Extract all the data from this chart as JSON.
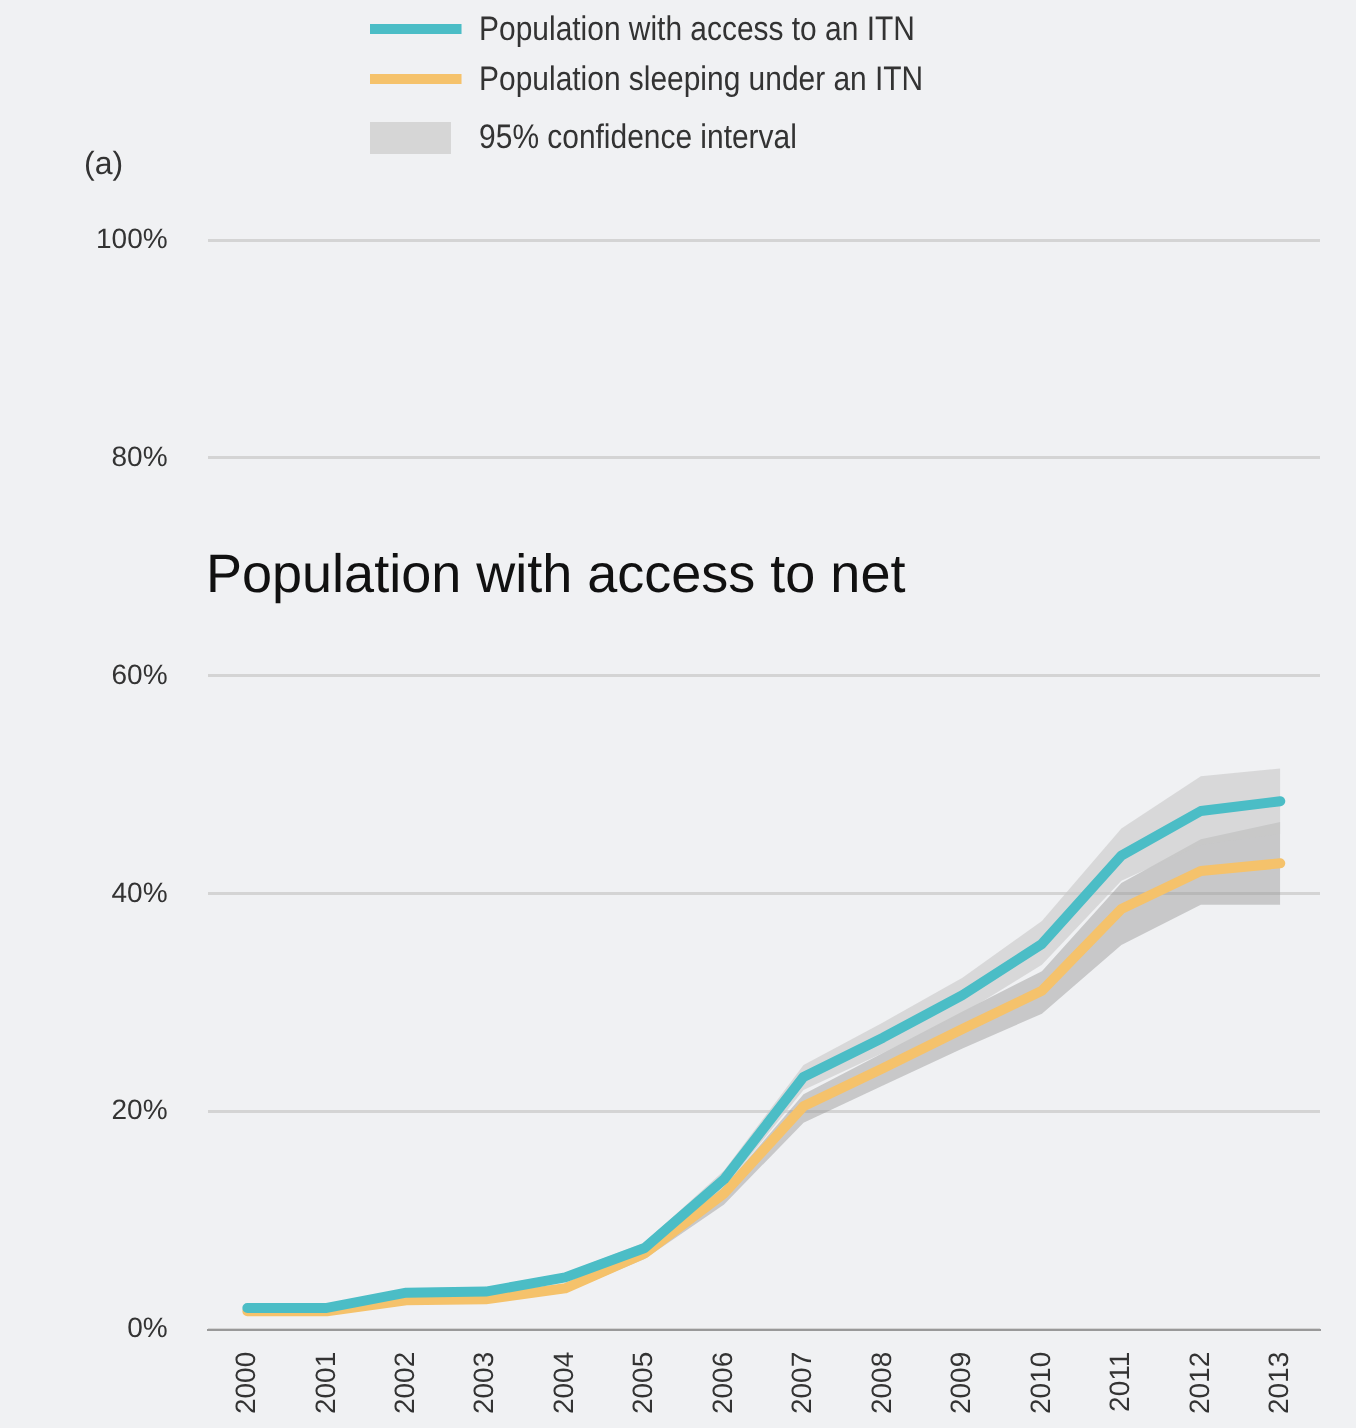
{
  "chart_data": {
    "type": "line",
    "categories": [
      "2000",
      "2001",
      "2002",
      "2003",
      "2004",
      "2005",
      "2006",
      "2007",
      "2008",
      "2009",
      "2010",
      "2011",
      "2012",
      "2013"
    ],
    "series": [
      {
        "name": "Population with access to an ITN",
        "color": "#4bbdc6",
        "values": [
          2.0,
          2.0,
          3.4,
          3.5,
          4.8,
          7.5,
          13.8,
          23.2,
          26.8,
          30.7,
          35.4,
          43.5,
          47.6,
          48.5
        ],
        "lower": [
          1.7,
          1.7,
          3.0,
          3.1,
          4.4,
          7.0,
          13.0,
          22.0,
          25.4,
          29.0,
          33.5,
          41.2,
          44.5,
          45.5
        ],
        "upper": [
          2.3,
          2.3,
          3.8,
          3.9,
          5.2,
          8.0,
          14.6,
          24.3,
          28.2,
          32.3,
          37.5,
          46.0,
          50.8,
          51.5
        ]
      },
      {
        "name": "Population sleeping under an ITN",
        "color": "#f5c26b",
        "values": [
          1.7,
          1.7,
          2.7,
          2.8,
          3.8,
          7.0,
          12.5,
          20.5,
          24.0,
          27.6,
          31.1,
          38.6,
          42.1,
          42.8
        ],
        "lower": [
          1.5,
          1.5,
          2.4,
          2.5,
          3.4,
          6.5,
          11.5,
          19.0,
          22.4,
          25.8,
          29.0,
          35.3,
          39.0,
          39.0
        ],
        "upper": [
          1.9,
          1.9,
          3.0,
          3.1,
          4.1,
          7.4,
          13.1,
          21.6,
          25.4,
          29.2,
          32.9,
          41.0,
          45.0,
          46.6
        ]
      }
    ],
    "ylim": [
      0,
      100
    ],
    "yticks": [
      {
        "value": 0,
        "label": "0%"
      },
      {
        "value": 20,
        "label": "20%"
      },
      {
        "value": 40,
        "label": "40%"
      },
      {
        "value": 60,
        "label": "60%"
      },
      {
        "value": 80,
        "label": "80%"
      },
      {
        "value": 100,
        "label": "100%"
      }
    ],
    "grid": "y",
    "legend": "top",
    "marker": "none",
    "line_style": "solid",
    "annotations": [
      "(a)",
      "Population with access to net",
      "95% confidence interval"
    ]
  }
}
